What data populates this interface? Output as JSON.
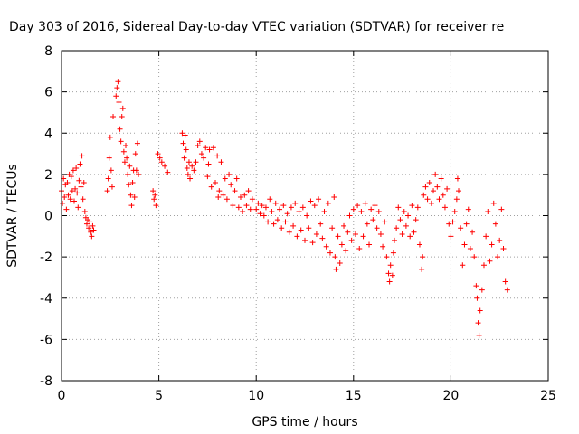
{
  "chart_data": {
    "type": "scatter",
    "title": "Day 303 of 2016, Sidereal Day-to-day VTEC variation (SDTVAR) for receiver re",
    "xlabel": "GPS time / hours",
    "ylabel": "SDTVAR / TECUs",
    "xlim": [
      0,
      25
    ],
    "ylim": [
      -8,
      8
    ],
    "x_ticks": [
      0,
      5,
      10,
      15,
      20,
      25
    ],
    "x_tick_labels": [
      "0",
      "5",
      "10",
      "15",
      "20",
      "25"
    ],
    "y_ticks": [
      -8,
      -6,
      -4,
      -2,
      0,
      2,
      4,
      6,
      8
    ],
    "y_tick_labels": [
      "-8",
      "-6",
      "-4",
      "-2",
      "0",
      "2",
      "4",
      "6",
      "8"
    ],
    "grid": true,
    "marker": "+",
    "color": "#ff0000",
    "series": [
      {
        "name": "SDTVAR",
        "points": [
          [
            0.0,
            1.2
          ],
          [
            0.05,
            0.6
          ],
          [
            0.1,
            1.8
          ],
          [
            0.15,
            0.9
          ],
          [
            0.2,
            1.5
          ],
          [
            0.25,
            0.3
          ],
          [
            0.3,
            1.6
          ],
          [
            0.35,
            1.0
          ],
          [
            0.4,
            2.0
          ],
          [
            0.45,
            0.8
          ],
          [
            0.5,
            1.9
          ],
          [
            0.55,
            1.2
          ],
          [
            0.6,
            2.2
          ],
          [
            0.65,
            0.7
          ],
          [
            0.7,
            1.3
          ],
          [
            0.75,
            2.3
          ],
          [
            0.8,
            1.1
          ],
          [
            0.85,
            0.4
          ],
          [
            0.9,
            1.7
          ],
          [
            0.95,
            2.5
          ],
          [
            1.0,
            1.4
          ],
          [
            1.05,
            2.9
          ],
          [
            1.1,
            0.8
          ],
          [
            1.15,
            1.6
          ],
          [
            1.2,
            0.2
          ],
          [
            1.25,
            -0.1
          ],
          [
            1.3,
            -0.4
          ],
          [
            1.35,
            -0.2
          ],
          [
            1.4,
            -0.6
          ],
          [
            1.45,
            -0.3
          ],
          [
            1.5,
            -0.8
          ],
          [
            1.55,
            -1.0
          ],
          [
            1.6,
            -0.5
          ],
          [
            1.65,
            -0.7
          ],
          [
            2.35,
            1.2
          ],
          [
            2.4,
            1.8
          ],
          [
            2.45,
            2.8
          ],
          [
            2.5,
            3.8
          ],
          [
            2.55,
            2.2
          ],
          [
            2.6,
            1.4
          ],
          [
            2.65,
            4.8
          ],
          [
            2.8,
            5.8
          ],
          [
            2.85,
            6.2
          ],
          [
            2.9,
            6.5
          ],
          [
            2.95,
            5.5
          ],
          [
            3.0,
            4.2
          ],
          [
            3.05,
            3.6
          ],
          [
            3.1,
            4.8
          ],
          [
            3.15,
            5.2
          ],
          [
            3.2,
            3.1
          ],
          [
            3.25,
            2.6
          ],
          [
            3.3,
            3.4
          ],
          [
            3.35,
            2.8
          ],
          [
            3.4,
            2.0
          ],
          [
            3.45,
            1.5
          ],
          [
            3.5,
            2.4
          ],
          [
            3.55,
            1.0
          ],
          [
            3.6,
            0.5
          ],
          [
            3.65,
            1.6
          ],
          [
            3.7,
            2.2
          ],
          [
            3.75,
            0.9
          ],
          [
            3.8,
            3.0
          ],
          [
            3.85,
            2.2
          ],
          [
            3.9,
            3.5
          ],
          [
            3.95,
            2.0
          ],
          [
            4.7,
            1.2
          ],
          [
            4.75,
            0.8
          ],
          [
            4.8,
            1.0
          ],
          [
            4.85,
            0.5
          ],
          [
            4.95,
            3.0
          ],
          [
            5.05,
            2.8
          ],
          [
            5.15,
            2.6
          ],
          [
            5.3,
            2.4
          ],
          [
            5.45,
            2.1
          ],
          [
            6.2,
            4.0
          ],
          [
            6.25,
            3.5
          ],
          [
            6.3,
            2.8
          ],
          [
            6.35,
            3.9
          ],
          [
            6.4,
            3.2
          ],
          [
            6.45,
            2.3
          ],
          [
            6.5,
            2.0
          ],
          [
            6.55,
            2.6
          ],
          [
            6.6,
            1.8
          ],
          [
            6.7,
            2.4
          ],
          [
            6.8,
            2.2
          ],
          [
            6.9,
            2.6
          ],
          [
            7.0,
            3.4
          ],
          [
            7.1,
            3.6
          ],
          [
            7.2,
            3.0
          ],
          [
            7.3,
            2.8
          ],
          [
            7.4,
            3.3
          ],
          [
            7.5,
            1.9
          ],
          [
            7.55,
            2.5
          ],
          [
            7.6,
            3.2
          ],
          [
            7.7,
            1.4
          ],
          [
            7.8,
            3.3
          ],
          [
            7.9,
            1.6
          ],
          [
            8.0,
            2.9
          ],
          [
            8.05,
            0.9
          ],
          [
            8.1,
            1.2
          ],
          [
            8.2,
            2.6
          ],
          [
            8.3,
            1.0
          ],
          [
            8.4,
            1.8
          ],
          [
            8.5,
            0.8
          ],
          [
            8.6,
            2.0
          ],
          [
            8.7,
            1.5
          ],
          [
            8.8,
            0.5
          ],
          [
            8.9,
            1.2
          ],
          [
            9.0,
            1.8
          ],
          [
            9.1,
            0.4
          ],
          [
            9.2,
            0.9
          ],
          [
            9.3,
            0.2
          ],
          [
            9.4,
            1.0
          ],
          [
            9.5,
            0.5
          ],
          [
            9.6,
            1.2
          ],
          [
            9.7,
            0.3
          ],
          [
            9.8,
            0.8
          ],
          [
            10.0,
            0.3
          ],
          [
            10.1,
            0.6
          ],
          [
            10.2,
            0.1
          ],
          [
            10.3,
            0.5
          ],
          [
            10.4,
            0.0
          ],
          [
            10.5,
            0.4
          ],
          [
            10.6,
            -0.3
          ],
          [
            10.7,
            0.8
          ],
          [
            10.8,
            0.2
          ],
          [
            10.9,
            -0.4
          ],
          [
            11.0,
            0.6
          ],
          [
            11.1,
            -0.2
          ],
          [
            11.2,
            0.3
          ],
          [
            11.3,
            -0.6
          ],
          [
            11.4,
            0.5
          ],
          [
            11.5,
            -0.3
          ],
          [
            11.6,
            0.1
          ],
          [
            11.7,
            -0.8
          ],
          [
            11.8,
            0.4
          ],
          [
            11.9,
            -0.5
          ],
          [
            12.0,
            0.6
          ],
          [
            12.1,
            -1.0
          ],
          [
            12.2,
            0.2
          ],
          [
            12.3,
            -0.7
          ],
          [
            12.4,
            0.4
          ],
          [
            12.5,
            -1.2
          ],
          [
            12.6,
            0.0
          ],
          [
            12.7,
            -0.6
          ],
          [
            12.8,
            0.7
          ],
          [
            12.9,
            -1.3
          ],
          [
            13.0,
            0.5
          ],
          [
            13.1,
            -0.9
          ],
          [
            13.2,
            0.8
          ],
          [
            13.3,
            -0.4
          ],
          [
            13.4,
            -1.1
          ],
          [
            13.5,
            0.2
          ],
          [
            13.6,
            -1.5
          ],
          [
            13.7,
            0.6
          ],
          [
            13.8,
            -1.8
          ],
          [
            13.9,
            -0.6
          ],
          [
            14.0,
            0.9
          ],
          [
            14.05,
            -2.0
          ],
          [
            14.1,
            -2.6
          ],
          [
            14.2,
            -1.0
          ],
          [
            14.3,
            -2.3
          ],
          [
            14.4,
            -1.4
          ],
          [
            14.5,
            -0.5
          ],
          [
            14.6,
            -1.7
          ],
          [
            14.7,
            -0.8
          ],
          [
            14.8,
            0.0
          ],
          [
            14.9,
            -1.2
          ],
          [
            15.0,
            0.3
          ],
          [
            15.1,
            -0.9
          ],
          [
            15.2,
            0.5
          ],
          [
            15.3,
            -1.6
          ],
          [
            15.4,
            0.2
          ],
          [
            15.5,
            -1.0
          ],
          [
            15.6,
            0.6
          ],
          [
            15.7,
            -0.4
          ],
          [
            15.8,
            -1.4
          ],
          [
            15.9,
            0.3
          ],
          [
            16.0,
            -0.2
          ],
          [
            16.1,
            0.5
          ],
          [
            16.2,
            -0.6
          ],
          [
            16.3,
            0.2
          ],
          [
            16.4,
            -0.9
          ],
          [
            16.5,
            -1.5
          ],
          [
            16.6,
            -0.3
          ],
          [
            16.7,
            -2.0
          ],
          [
            16.8,
            -2.8
          ],
          [
            16.85,
            -3.2
          ],
          [
            16.9,
            -2.4
          ],
          [
            17.0,
            -2.9
          ],
          [
            17.05,
            -1.8
          ],
          [
            17.1,
            -1.2
          ],
          [
            17.2,
            -0.6
          ],
          [
            17.3,
            0.4
          ],
          [
            17.4,
            -0.2
          ],
          [
            17.5,
            -0.9
          ],
          [
            17.6,
            0.2
          ],
          [
            17.7,
            -0.5
          ],
          [
            17.8,
            0.0
          ],
          [
            17.9,
            -1.0
          ],
          [
            18.0,
            0.5
          ],
          [
            18.1,
            -0.8
          ],
          [
            18.2,
            -0.2
          ],
          [
            18.3,
            0.4
          ],
          [
            18.4,
            -1.4
          ],
          [
            18.5,
            -2.6
          ],
          [
            18.55,
            -2.0
          ],
          [
            18.6,
            1.0
          ],
          [
            18.7,
            1.4
          ],
          [
            18.8,
            0.8
          ],
          [
            18.9,
            1.6
          ],
          [
            19.0,
            0.6
          ],
          [
            19.1,
            1.2
          ],
          [
            19.2,
            2.0
          ],
          [
            19.3,
            1.4
          ],
          [
            19.4,
            0.8
          ],
          [
            19.5,
            1.8
          ],
          [
            19.6,
            1.0
          ],
          [
            19.7,
            0.4
          ],
          [
            19.8,
            1.3
          ],
          [
            19.9,
            -0.4
          ],
          [
            20.0,
            -1.0
          ],
          [
            20.1,
            -0.3
          ],
          [
            20.2,
            0.2
          ],
          [
            20.3,
            0.8
          ],
          [
            20.35,
            1.8
          ],
          [
            20.4,
            1.2
          ],
          [
            20.5,
            -0.6
          ],
          [
            20.6,
            -2.4
          ],
          [
            20.7,
            -1.4
          ],
          [
            20.8,
            -0.4
          ],
          [
            20.9,
            0.3
          ],
          [
            21.0,
            -1.6
          ],
          [
            21.1,
            -0.8
          ],
          [
            21.2,
            -2.0
          ],
          [
            21.3,
            -3.4
          ],
          [
            21.35,
            -4.0
          ],
          [
            21.4,
            -5.2
          ],
          [
            21.45,
            -5.8
          ],
          [
            21.5,
            -4.6
          ],
          [
            21.6,
            -3.6
          ],
          [
            21.7,
            -2.4
          ],
          [
            21.8,
            -1.0
          ],
          [
            21.9,
            0.2
          ],
          [
            22.0,
            -2.2
          ],
          [
            22.1,
            -1.4
          ],
          [
            22.2,
            0.6
          ],
          [
            22.3,
            -0.4
          ],
          [
            22.4,
            -2.0
          ],
          [
            22.5,
            -1.2
          ],
          [
            22.6,
            0.3
          ],
          [
            22.7,
            -1.6
          ],
          [
            22.8,
            -3.2
          ],
          [
            22.9,
            -3.6
          ]
        ]
      }
    ]
  }
}
